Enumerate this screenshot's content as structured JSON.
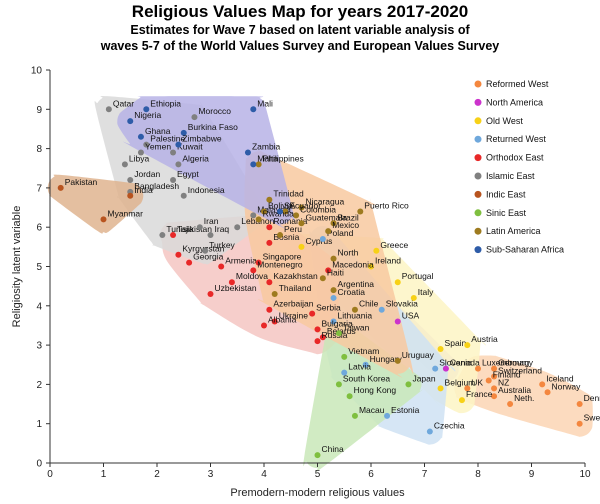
{
  "title": "Religious Values Map for years 2017-2020",
  "subtitle_lines": [
    "Estimates for Wave 7 based on latent variable analysis of",
    "waves 5-7 of the World Values Survey and European Values Survey"
  ],
  "chart_data": {
    "type": "scatter",
    "xlabel": "Premodern-modern religious values",
    "ylabel": "Religiosity latent variable",
    "xlim": [
      0,
      10
    ],
    "ylim": [
      0,
      10
    ],
    "xticks": [
      "0",
      "1",
      "2",
      "3",
      "4",
      "5",
      "6",
      "7",
      "8",
      "9",
      "10"
    ],
    "yticks": [
      "0",
      "1",
      "2",
      "3",
      "4",
      "5",
      "6",
      "7",
      "8",
      "9",
      "10"
    ],
    "grid": false,
    "legend_position": "top-right",
    "series": [
      {
        "name": "Reformed West",
        "color": "#f4873f",
        "region_color": "#fcd5b4",
        "points": [
          {
            "label": "Germany",
            "x": 8.3,
            "y": 2.4
          },
          {
            "label": "Luxembourg",
            "x": 8.0,
            "y": 2.4
          },
          {
            "label": "Switzerland",
            "x": 8.3,
            "y": 2.2
          },
          {
            "label": "Finland",
            "x": 8.2,
            "y": 2.1
          },
          {
            "label": "NZ",
            "x": 8.3,
            "y": 1.9
          },
          {
            "label": "Australia",
            "x": 8.3,
            "y": 1.7
          },
          {
            "label": "Neth.",
            "x": 8.6,
            "y": 1.5
          },
          {
            "label": "Iceland",
            "x": 9.2,
            "y": 2.0
          },
          {
            "label": "Norway",
            "x": 9.3,
            "y": 1.8
          },
          {
            "label": "Denmark",
            "x": 9.9,
            "y": 1.5
          },
          {
            "label": "Sweden",
            "x": 9.9,
            "y": 1.0
          },
          {
            "label": "UK",
            "x": 7.8,
            "y": 1.9
          }
        ]
      },
      {
        "name": "North America",
        "color": "#cc33cc",
        "region_color": "#d9c6ec",
        "points": [
          {
            "label": "USA",
            "x": 6.5,
            "y": 3.6
          },
          {
            "label": "Canada",
            "x": 7.4,
            "y": 2.4
          }
        ]
      },
      {
        "name": "Old West",
        "color": "#f7d117",
        "region_color": "#fdf4c4",
        "points": [
          {
            "label": "Greece",
            "x": 6.1,
            "y": 5.4
          },
          {
            "label": "Ireland",
            "x": 6.0,
            "y": 5.0
          },
          {
            "label": "Portugal",
            "x": 6.5,
            "y": 4.6
          },
          {
            "label": "Italy",
            "x": 6.8,
            "y": 4.2
          },
          {
            "label": "Spain",
            "x": 7.3,
            "y": 2.9
          },
          {
            "label": "Austria",
            "x": 7.8,
            "y": 3.0
          },
          {
            "label": "France",
            "x": 7.7,
            "y": 1.6
          },
          {
            "label": "Belgium",
            "x": 7.3,
            "y": 1.9
          },
          {
            "label": "Cyprus",
            "x": 4.7,
            "y": 5.5
          }
        ]
      },
      {
        "name": "Returned West",
        "color": "#6fa8dc",
        "region_color": "#cfe2f3",
        "points": [
          {
            "label": "Poland",
            "x": 5.1,
            "y": 5.7
          },
          {
            "label": "Croatia",
            "x": 5.3,
            "y": 4.2
          },
          {
            "label": "Slovakia",
            "x": 6.2,
            "y": 3.9
          },
          {
            "label": "Lithuania",
            "x": 5.3,
            "y": 3.6
          },
          {
            "label": "Slovenia",
            "x": 7.2,
            "y": 2.4
          },
          {
            "label": "Hungary",
            "x": 5.9,
            "y": 2.5
          },
          {
            "label": "Latvia",
            "x": 5.5,
            "y": 2.3
          },
          {
            "label": "Estonia",
            "x": 6.3,
            "y": 1.2
          },
          {
            "label": "Czechia",
            "x": 7.1,
            "y": 0.8
          }
        ]
      },
      {
        "name": "Orthodox East",
        "color": "#e82828",
        "region_color": "#f4c6c2",
        "points": [
          {
            "label": "Romania",
            "x": 4.1,
            "y": 6.0
          },
          {
            "label": "Bosnia",
            "x": 4.1,
            "y": 5.6
          },
          {
            "label": "Georgia",
            "x": 2.6,
            "y": 5.1
          },
          {
            "label": "Armenia",
            "x": 3.2,
            "y": 5.0
          },
          {
            "label": "Singapore",
            "x": 3.9,
            "y": 5.1
          },
          {
            "label": "Montenegro",
            "x": 3.8,
            "y": 4.9
          },
          {
            "label": "Moldova",
            "x": 3.4,
            "y": 4.6
          },
          {
            "label": "Kazakhstan",
            "x": 4.1,
            "y": 4.6
          },
          {
            "label": "Uzbekistan",
            "x": 3.0,
            "y": 4.3
          },
          {
            "label": "Serbia",
            "x": 4.9,
            "y": 3.8
          },
          {
            "label": "Bulgaria",
            "x": 5.0,
            "y": 3.4
          },
          {
            "label": "Belarus",
            "x": 5.1,
            "y": 3.2
          },
          {
            "label": "Russia",
            "x": 5.0,
            "y": 3.1
          },
          {
            "label": "Ukraine",
            "x": 4.2,
            "y": 3.6
          },
          {
            "label": "Albania",
            "x": 4.0,
            "y": 3.5
          },
          {
            "label": "Azerbaijan",
            "x": 4.1,
            "y": 3.9
          },
          {
            "label": "Macedonia",
            "x": 5.2,
            "y": 4.9
          },
          {
            "label": "Kyrgyzstan",
            "x": 2.4,
            "y": 5.3
          },
          {
            "label": "Tajikistan",
            "x": 2.3,
            "y": 5.8
          }
        ]
      },
      {
        "name": "Islamic East",
        "color": "#808080",
        "region_color": "#d9d9d9",
        "points": [
          {
            "label": "Qatar",
            "x": 1.1,
            "y": 9.0
          },
          {
            "label": "Morocco",
            "x": 2.7,
            "y": 8.8
          },
          {
            "label": "Palestine",
            "x": 1.8,
            "y": 8.1
          },
          {
            "label": "Yemen",
            "x": 1.7,
            "y": 7.9
          },
          {
            "label": "Kuwait",
            "x": 2.3,
            "y": 7.9
          },
          {
            "label": "Libya",
            "x": 1.4,
            "y": 7.6
          },
          {
            "label": "Algeria",
            "x": 2.4,
            "y": 7.6
          },
          {
            "label": "Egypt",
            "x": 2.3,
            "y": 7.2
          },
          {
            "label": "Jordan",
            "x": 1.5,
            "y": 7.2
          },
          {
            "label": "Bangladesh",
            "x": 1.5,
            "y": 6.9
          },
          {
            "label": "Indonesia",
            "x": 2.5,
            "y": 6.8
          },
          {
            "label": "Tunisia",
            "x": 2.1,
            "y": 5.8
          },
          {
            "label": "Iran",
            "x": 2.8,
            "y": 6.0
          },
          {
            "label": "Iraq",
            "x": 3.0,
            "y": 5.8
          },
          {
            "label": "Lebanon",
            "x": 3.5,
            "y": 6.0
          },
          {
            "label": "Turkey",
            "x": 2.9,
            "y": 5.4
          },
          {
            "label": "Malaysia",
            "x": 3.8,
            "y": 6.3
          }
        ]
      },
      {
        "name": "Indic East",
        "color": "#b8541f",
        "region_color": "#dfb48f",
        "points": [
          {
            "label": "Pakistan",
            "x": 0.2,
            "y": 7.0
          },
          {
            "label": "India",
            "x": 1.5,
            "y": 6.8
          },
          {
            "label": "Myanmar",
            "x": 1.0,
            "y": 6.2
          }
        ]
      },
      {
        "name": "Sinic East",
        "color": "#7fbf3f",
        "region_color": "#c9e8b8",
        "points": [
          {
            "label": "Vietnam",
            "x": 5.5,
            "y": 2.7
          },
          {
            "label": "South Korea",
            "x": 5.4,
            "y": 2.0
          },
          {
            "label": "Hong Kong",
            "x": 5.6,
            "y": 1.7
          },
          {
            "label": "Macau",
            "x": 5.7,
            "y": 1.2
          },
          {
            "label": "China",
            "x": 5.0,
            "y": 0.2
          },
          {
            "label": "Japan",
            "x": 6.7,
            "y": 2.0
          },
          {
            "label": "Taiwan",
            "x": 5.4,
            "y": 3.3
          }
        ]
      },
      {
        "name": "Latin America",
        "color": "#9e7b1f",
        "region_color": "#f8c9a0",
        "points": [
          {
            "label": "Nicaragua",
            "x": 4.7,
            "y": 6.5
          },
          {
            "label": "Colombia",
            "x": 4.6,
            "y": 6.3
          },
          {
            "label": "Guatemala",
            "x": 4.7,
            "y": 6.1
          },
          {
            "label": "Brazil",
            "x": 5.3,
            "y": 6.1
          },
          {
            "label": "Mexico",
            "x": 5.2,
            "y": 5.9
          },
          {
            "label": "Peru",
            "x": 4.3,
            "y": 5.8
          },
          {
            "label": "Ecuador",
            "x": 4.4,
            "y": 6.4
          },
          {
            "label": "Bolivia",
            "x": 4.0,
            "y": 6.4
          },
          {
            "label": "Rwanda",
            "x": 3.9,
            "y": 6.2
          },
          {
            "label": "Trinidad",
            "x": 4.1,
            "y": 6.7
          },
          {
            "label": "Philippines",
            "x": 3.9,
            "y": 7.6
          },
          {
            "label": "Puerto Rico",
            "x": 5.8,
            "y": 6.4
          },
          {
            "label": "Haiti",
            "x": 5.1,
            "y": 4.7
          },
          {
            "label": "Argentina",
            "x": 5.3,
            "y": 4.4
          },
          {
            "label": "Chile",
            "x": 5.7,
            "y": 3.9
          },
          {
            "label": "Uruguay",
            "x": 6.5,
            "y": 2.6
          },
          {
            "label": "North",
            "x": 5.3,
            "y": 5.2
          },
          {
            "label": "Thailand",
            "x": 4.2,
            "y": 4.3
          }
        ]
      },
      {
        "name": "Sub-Saharan Africa",
        "color": "#2e5ca8",
        "region_color": "#b7b3e6",
        "points": [
          {
            "label": "Mali",
            "x": 3.8,
            "y": 9.0
          },
          {
            "label": "Ethiopia",
            "x": 1.8,
            "y": 9.0
          },
          {
            "label": "Nigeria",
            "x": 1.5,
            "y": 8.7
          },
          {
            "label": "Burkina Faso",
            "x": 2.5,
            "y": 8.4
          },
          {
            "label": "Ghana",
            "x": 1.7,
            "y": 8.3
          },
          {
            "label": "Zimbabwe",
            "x": 2.4,
            "y": 8.1
          },
          {
            "label": "Zambia",
            "x": 3.7,
            "y": 7.9
          },
          {
            "label": "Malta",
            "x": 3.8,
            "y": 7.6
          },
          {
            "label": "SA",
            "x": 4.3,
            "y": 6.4
          }
        ]
      }
    ]
  }
}
